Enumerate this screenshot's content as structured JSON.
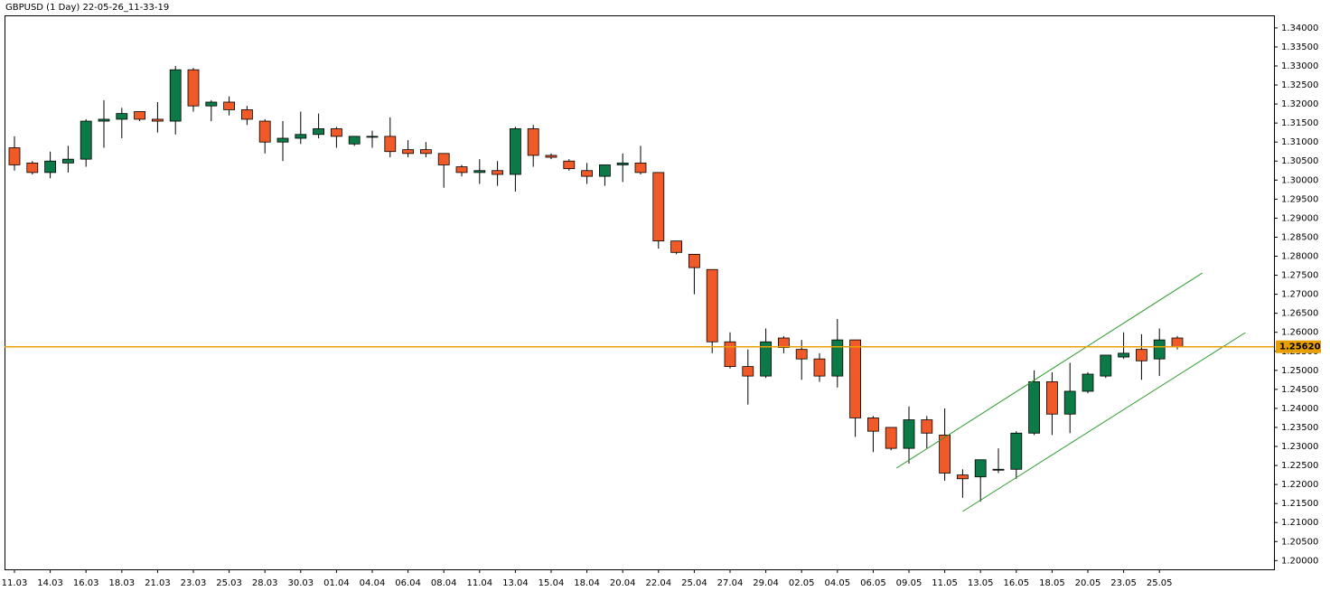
{
  "chart_data": {
    "type": "candlestick",
    "title": "GBPUSD (1 Day) 22-05-26_11-33-19",
    "categories": [
      "11.03",
      null,
      "14.03",
      null,
      "16.03",
      null,
      "18.03",
      null,
      "21.03",
      null,
      "23.03",
      null,
      "25.03",
      null,
      "28.03",
      null,
      "30.03",
      null,
      "01.04",
      null,
      "04.04",
      null,
      "06.04",
      null,
      "08.04",
      null,
      "11.04",
      null,
      "13.04",
      null,
      "15.04",
      null,
      "18.04",
      null,
      "20.04",
      null,
      "22.04",
      null,
      "25.04",
      null,
      "27.04",
      null,
      "29.04",
      null,
      "02.05",
      null,
      "04.05",
      null,
      "06.05",
      null,
      "09.05",
      null,
      "11.05",
      null,
      "13.05",
      null,
      "16.05",
      null,
      "18.05",
      null,
      "20.05",
      null,
      "23.05",
      null,
      "25.05",
      null
    ],
    "open": [
      1.3085,
      1.3045,
      1.302,
      1.3045,
      1.3055,
      1.3155,
      1.316,
      1.318,
      1.316,
      1.3155,
      1.329,
      1.3195,
      1.3205,
      1.3185,
      1.3155,
      1.31,
      1.311,
      1.312,
      1.3135,
      1.3095,
      1.3115,
      1.3115,
      1.308,
      1.308,
      1.307,
      1.3035,
      1.302,
      1.3025,
      1.3015,
      1.3135,
      1.3065,
      1.305,
      1.3025,
      1.301,
      1.304,
      1.3045,
      1.302,
      1.284,
      1.2805,
      1.2765,
      1.2575,
      1.251,
      1.2485,
      1.2585,
      1.2555,
      1.253,
      1.2485,
      1.258,
      1.2375,
      1.235,
      1.2295,
      1.237,
      1.233,
      1.2225,
      1.222,
      1.224,
      1.224,
      1.2335,
      1.247,
      1.2385,
      1.2445,
      1.2485,
      1.2535,
      1.2555,
      1.253,
      1.2585
    ],
    "high": [
      1.3115,
      1.305,
      1.3075,
      1.309,
      1.316,
      1.321,
      1.319,
      1.318,
      1.3205,
      1.33,
      1.3295,
      1.321,
      1.322,
      1.3195,
      1.316,
      1.3155,
      1.318,
      1.3175,
      1.314,
      1.3115,
      1.313,
      1.3165,
      1.3105,
      1.31,
      1.307,
      1.304,
      1.3055,
      1.305,
      1.314,
      1.3145,
      1.307,
      1.3055,
      1.3045,
      1.304,
      1.307,
      1.309,
      1.302,
      1.284,
      1.2805,
      1.2765,
      1.26,
      1.2555,
      1.261,
      1.259,
      1.258,
      1.2545,
      1.2635,
      1.258,
      1.238,
      1.235,
      1.2405,
      1.238,
      1.24,
      1.224,
      1.2265,
      1.2295,
      1.234,
      1.25,
      1.2495,
      1.252,
      1.2495,
      1.254,
      1.26,
      1.2595,
      1.261,
      1.259
    ],
    "low": [
      1.3025,
      1.3015,
      1.3005,
      1.302,
      1.3035,
      1.3085,
      1.311,
      1.3155,
      1.3125,
      1.312,
      1.318,
      1.3155,
      1.317,
      1.3145,
      1.307,
      1.305,
      1.3095,
      1.311,
      1.3085,
      1.309,
      1.3085,
      1.306,
      1.306,
      1.306,
      1.298,
      1.301,
      1.299,
      1.2985,
      1.297,
      1.3035,
      1.3055,
      1.3025,
      1.299,
      1.2985,
      1.2995,
      1.3015,
      1.282,
      1.2805,
      1.27,
      1.2545,
      1.2505,
      1.241,
      1.248,
      1.2545,
      1.2475,
      1.247,
      1.2455,
      1.2325,
      1.2285,
      1.229,
      1.2255,
      1.2295,
      1.221,
      1.2165,
      1.2155,
      1.223,
      1.2215,
      1.233,
      1.233,
      1.2335,
      1.244,
      1.248,
      1.253,
      1.2475,
      1.2485,
      1.2555
    ],
    "close": [
      1.304,
      1.302,
      1.305,
      1.3055,
      1.3155,
      1.316,
      1.3175,
      1.316,
      1.3155,
      1.329,
      1.3195,
      1.3205,
      1.3185,
      1.316,
      1.31,
      1.311,
      1.312,
      1.3135,
      1.3115,
      1.3115,
      1.3115,
      1.3075,
      1.307,
      1.307,
      1.304,
      1.302,
      1.3025,
      1.3015,
      1.3135,
      1.3065,
      1.306,
      1.303,
      1.301,
      1.304,
      1.3045,
      1.302,
      1.284,
      1.281,
      1.277,
      1.2575,
      1.251,
      1.2485,
      1.2575,
      1.256,
      1.253,
      1.2485,
      1.258,
      1.2375,
      1.234,
      1.2295,
      1.237,
      1.2335,
      1.223,
      1.2215,
      1.2265,
      1.224,
      1.2335,
      1.247,
      1.2385,
      1.2445,
      1.249,
      1.254,
      1.2545,
      1.2525,
      1.258,
      1.2562
    ],
    "up_color": "#0b7a47",
    "down_color": "#f05a28",
    "current_price": 1.2562,
    "current_price_label": "1.25620",
    "current_price_color": "#e8a000",
    "trendlines": [
      {
        "x": [
          49.3,
          66.4
        ],
        "y": [
          1.2243,
          1.2756
        ],
        "color": "#2e9a2e"
      },
      {
        "x": [
          53.0,
          68.8
        ],
        "y": [
          1.2129,
          1.2599
        ],
        "color": "#2e9a2e"
      }
    ],
    "ylim": [
      1.1977,
      1.3433
    ],
    "yticks": [
      {
        "value": 1.2,
        "label": "1.20000"
      },
      {
        "value": 1.205,
        "label": "1.20500"
      },
      {
        "value": 1.21,
        "label": "1.21000"
      },
      {
        "value": 1.215,
        "label": "1.21500"
      },
      {
        "value": 1.22,
        "label": "1.22000"
      },
      {
        "value": 1.225,
        "label": "1.22500"
      },
      {
        "value": 1.23,
        "label": "1.23000"
      },
      {
        "value": 1.235,
        "label": "1.23500"
      },
      {
        "value": 1.24,
        "label": "1.24000"
      },
      {
        "value": 1.245,
        "label": "1.24500"
      },
      {
        "value": 1.25,
        "label": "1.25000"
      },
      {
        "value": 1.255,
        "label": "1.25500"
      },
      {
        "value": 1.26,
        "label": "1.26000"
      },
      {
        "value": 1.265,
        "label": "1.26500"
      },
      {
        "value": 1.27,
        "label": "1.27000"
      },
      {
        "value": 1.275,
        "label": "1.27500"
      },
      {
        "value": 1.28,
        "label": "1.28000"
      },
      {
        "value": 1.285,
        "label": "1.28500"
      },
      {
        "value": 1.29,
        "label": "1.29000"
      },
      {
        "value": 1.295,
        "label": "1.29500"
      },
      {
        "value": 1.3,
        "label": "1.30000"
      },
      {
        "value": 1.305,
        "label": "1.30500"
      },
      {
        "value": 1.31,
        "label": "1.31000"
      },
      {
        "value": 1.315,
        "label": "1.31500"
      },
      {
        "value": 1.32,
        "label": "1.32000"
      },
      {
        "value": 1.325,
        "label": "1.32500"
      },
      {
        "value": 1.33,
        "label": "1.33000"
      },
      {
        "value": 1.335,
        "label": "1.33500"
      },
      {
        "value": 1.34,
        "label": "1.34000"
      }
    ]
  }
}
